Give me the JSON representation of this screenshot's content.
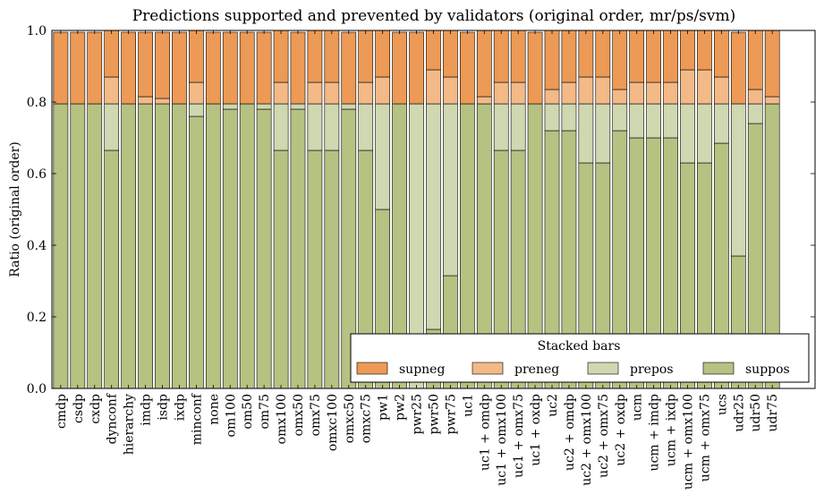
{
  "chart_data": {
    "type": "bar",
    "stacked": true,
    "title": "Predictions supported and prevented by validators (original order, mr/ps/svm)",
    "xlabel": "",
    "ylabel": "Ratio (original order)",
    "ylim": [
      0,
      1
    ],
    "yticks": [
      "0.0",
      "0.2",
      "0.4",
      "0.6",
      "0.8",
      "1.0"
    ],
    "grid": false,
    "legend": {
      "title": "Stacked bars",
      "placement": "lower-right",
      "columns": 4
    },
    "categories": [
      "cmdp",
      "csdp",
      "cxdp",
      "dynconf",
      "hierarchy",
      "imdp",
      "isdp",
      "ixdp",
      "minconf",
      "none",
      "om100",
      "om50",
      "om75",
      "omx100",
      "omx50",
      "omx75",
      "omxc100",
      "omxc50",
      "omxc75",
      "pw1",
      "pw2",
      "pwr25",
      "pwr50",
      "pwr75",
      "uc1",
      "uc1 + omdp",
      "uc1 + omx100",
      "uc1 + omx75",
      "uc1 + oxdp",
      "uc2",
      "uc2 + omdp",
      "uc2 + omx100",
      "uc2 + omx75",
      "uc2 + oxdp",
      "ucm",
      "ucm + imdp",
      "ucm + ixdp",
      "ucm + omx100",
      "ucm + omx75",
      "ucs",
      "udr25",
      "udr50",
      "udr75"
    ],
    "series": [
      {
        "name": "supneg",
        "color": "#ec9a55",
        "values": [
          0.2,
          0.2,
          0.2,
          0.13,
          0.2,
          0.18,
          0.185,
          0.2,
          0.145,
          0.2,
          0.2,
          0.2,
          0.2,
          0.145,
          0.2,
          0.145,
          0.145,
          0.2,
          0.145,
          0.13,
          0.2,
          0.2,
          0.11,
          0.13,
          0.2,
          0.185,
          0.145,
          0.145,
          0.2,
          0.165,
          0.145,
          0.13,
          0.13,
          0.165,
          0.145,
          0.145,
          0.145,
          0.11,
          0.11,
          0.13,
          0.2,
          0.165,
          0.185
        ]
      },
      {
        "name": "preneg",
        "color": "#f3b987",
        "values": [
          0,
          0,
          0,
          0.075,
          0,
          0.02,
          0.015,
          0,
          0.06,
          0,
          0,
          0,
          0,
          0.06,
          0,
          0.06,
          0.06,
          0,
          0.06,
          0.075,
          0,
          0,
          0.095,
          0.075,
          0,
          0.02,
          0.06,
          0.06,
          0,
          0.04,
          0.06,
          0.075,
          0.075,
          0.04,
          0.06,
          0.06,
          0.06,
          0.095,
          0.095,
          0.075,
          0,
          0.04,
          0.02
        ]
      },
      {
        "name": "prepos",
        "color": "#cfd8b1",
        "values": [
          0,
          0,
          0,
          0.13,
          0,
          0,
          0,
          0,
          0.035,
          0,
          0.015,
          0,
          0.015,
          0.13,
          0.015,
          0.13,
          0.13,
          0.015,
          0.13,
          0.295,
          0,
          0.795,
          0.63,
          0.48,
          0,
          0,
          0.13,
          0.13,
          0,
          0.075,
          0.075,
          0.165,
          0.165,
          0.075,
          0.095,
          0.095,
          0.095,
          0.165,
          0.165,
          0.11,
          0.425,
          0.055,
          0
        ]
      },
      {
        "name": "suppos",
        "color": "#b5c282",
        "values": [
          0.795,
          0.795,
          0.795,
          0.665,
          0.795,
          0.795,
          0.795,
          0.795,
          0.76,
          0.795,
          0.78,
          0.795,
          0.78,
          0.665,
          0.78,
          0.665,
          0.665,
          0.78,
          0.665,
          0.5,
          0.795,
          0,
          0.165,
          0.315,
          0.795,
          0.795,
          0.665,
          0.665,
          0.795,
          0.72,
          0.72,
          0.63,
          0.63,
          0.72,
          0.7,
          0.7,
          0.7,
          0.63,
          0.63,
          0.685,
          0.37,
          0.74,
          0.795
        ]
      }
    ]
  }
}
